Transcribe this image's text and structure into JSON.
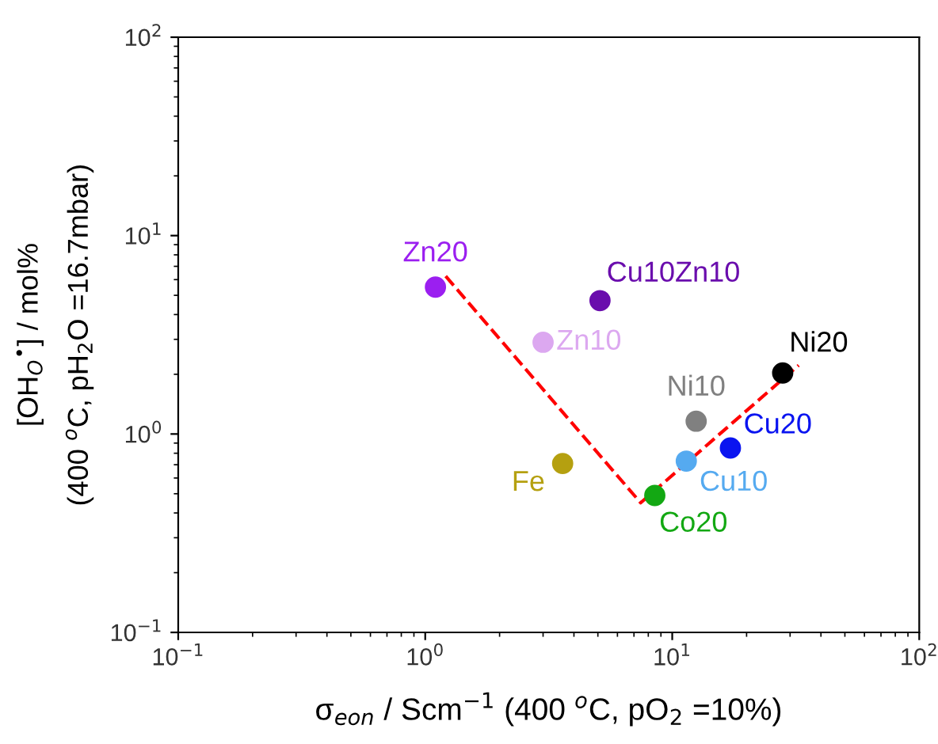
{
  "chart_data": {
    "type": "scatter",
    "xlabel": "σ$_{eon}$ / Scm$^{−1}$ (400 $^{o}$C, pO$_{2}$ =10%)",
    "ylabel": "[OH$_{O}$$^{•}$] / mol%",
    "annotations": [
      "(400 $^{o}$C, pH$_{2}$O =16.7mbar)"
    ],
    "log": "xy",
    "grid": false,
    "legend": false,
    "marker": "circle",
    "xlim": [
      0.1,
      100
    ],
    "ylim": [
      0.1,
      100
    ],
    "xticks": [
      {
        "value": 0.1,
        "label": "10$^{−1}$"
      },
      {
        "value": 1,
        "label": "10$^{0}$"
      },
      {
        "value": 10,
        "label": "10$^{1}$"
      },
      {
        "value": 100,
        "label": "10$^{2}$"
      }
    ],
    "yticks": [
      {
        "value": 0.1,
        "label": "10$^{−1}$"
      },
      {
        "value": 1,
        "label": "10$^{0}$"
      },
      {
        "value": 10,
        "label": "10$^{1}$"
      },
      {
        "value": 100,
        "label": "10$^{2}$"
      }
    ],
    "series": [
      {
        "type": "line",
        "color": "#ff0000",
        "line_style": "dashed",
        "marker": "none",
        "x": [
          1.21,
          7.45,
          32.5
        ],
        "values": [
          6.25,
          0.45,
          2.22
        ]
      },
      {
        "name": "Zn20",
        "color": "#9b1ff0",
        "x": [
          1.1
        ],
        "values": [
          5.5
        ]
      },
      {
        "name": "Cu10Zn10",
        "color": "#6a0dad",
        "x": [
          5.1
        ],
        "values": [
          4.7
        ]
      },
      {
        "name": "Zn10",
        "color": "#dca8f0",
        "x": [
          3.0
        ],
        "values": [
          2.9
        ]
      },
      {
        "name": "Fe",
        "color": "#b5a010",
        "x": [
          3.6
        ],
        "values": [
          0.71
        ]
      },
      {
        "name": "Co20",
        "color": "#13a813",
        "x": [
          8.5
        ],
        "values": [
          0.49
        ]
      },
      {
        "name": "Ni10",
        "color": "#808080",
        "x": [
          12.5
        ],
        "values": [
          1.16
        ]
      },
      {
        "name": "Cu10",
        "color": "#55aaf0",
        "x": [
          11.4
        ],
        "values": [
          0.73
        ]
      },
      {
        "name": "Cu20",
        "color": "#0a14f0",
        "x": [
          17.2
        ],
        "values": [
          0.85
        ]
      },
      {
        "name": "Ni20",
        "color": "#000000",
        "x": [
          28
        ],
        "values": [
          2.03
        ]
      }
    ]
  }
}
